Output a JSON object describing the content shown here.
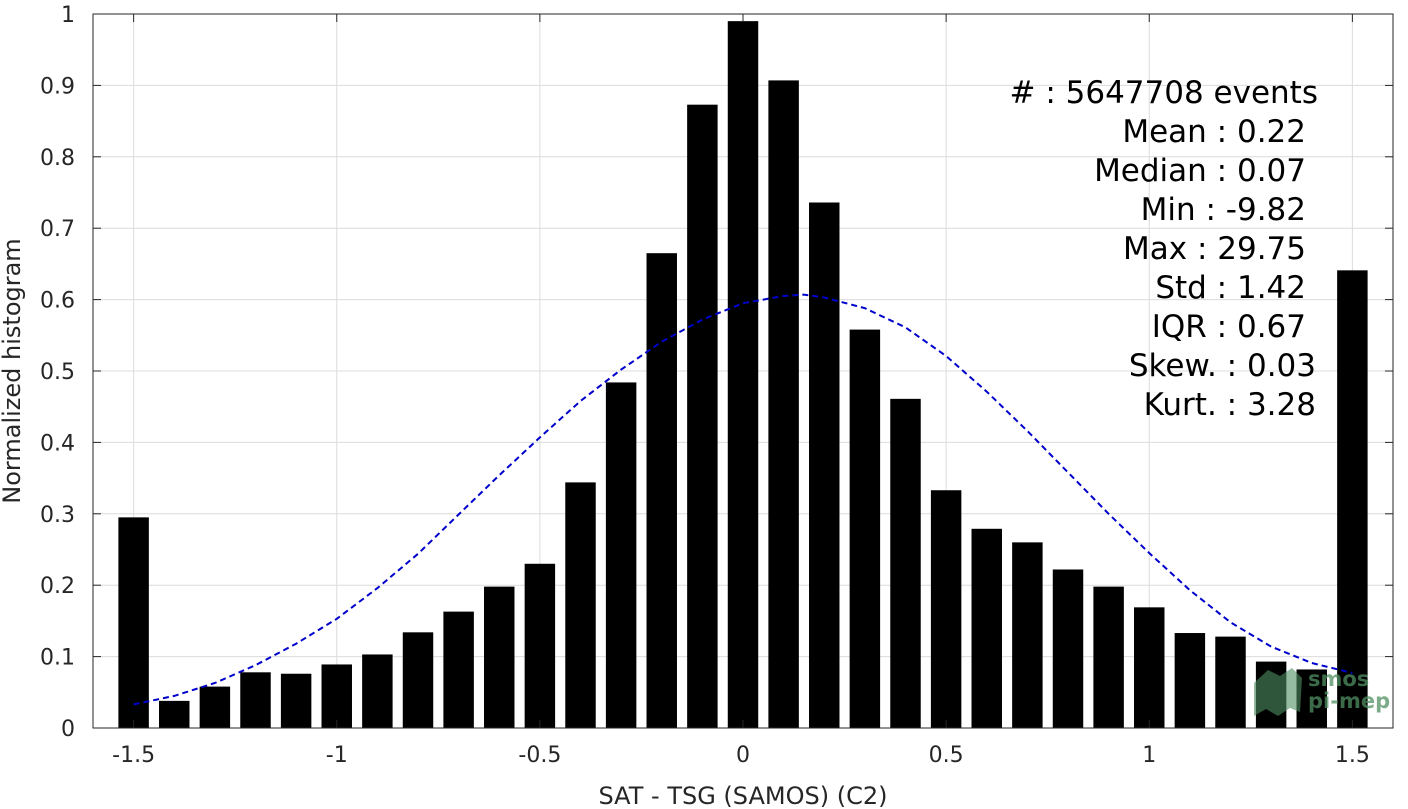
{
  "chart_data": {
    "type": "bar",
    "xlabel": "SAT - TSG (SAMOS) (C2)",
    "ylabel": "Normalized histogram",
    "xlim": [
      -1.6,
      1.6
    ],
    "ylim": [
      0,
      1
    ],
    "grid": true,
    "xticks": [
      -1.5,
      -1,
      -0.5,
      0,
      0.5,
      1,
      1.5
    ],
    "xtick_labels": [
      "-1.5",
      "-1",
      "-0.5",
      "0",
      "0.5",
      "1",
      "1.5"
    ],
    "yticks": [
      0,
      0.1,
      0.2,
      0.3,
      0.4,
      0.5,
      0.6,
      0.7,
      0.8,
      0.9,
      1
    ],
    "ytick_labels": [
      "0",
      "0.1",
      "0.2",
      "0.3",
      "0.4",
      "0.5",
      "0.6",
      "0.7",
      "0.8",
      "0.9",
      "1"
    ],
    "bar_color": "#000000",
    "bin_width": 0.1,
    "bars": [
      {
        "x": -1.5,
        "y": 0.295
      },
      {
        "x": -1.4,
        "y": 0.038
      },
      {
        "x": -1.3,
        "y": 0.058
      },
      {
        "x": -1.2,
        "y": 0.078
      },
      {
        "x": -1.1,
        "y": 0.076
      },
      {
        "x": -1.0,
        "y": 0.089
      },
      {
        "x": -0.9,
        "y": 0.103
      },
      {
        "x": -0.8,
        "y": 0.134
      },
      {
        "x": -0.7,
        "y": 0.163
      },
      {
        "x": -0.6,
        "y": 0.198
      },
      {
        "x": -0.5,
        "y": 0.23
      },
      {
        "x": -0.4,
        "y": 0.344
      },
      {
        "x": -0.3,
        "y": 0.484
      },
      {
        "x": -0.2,
        "y": 0.665
      },
      {
        "x": -0.1,
        "y": 0.873
      },
      {
        "x": 0.0,
        "y": 0.99
      },
      {
        "x": 0.1,
        "y": 0.907
      },
      {
        "x": 0.2,
        "y": 0.736
      },
      {
        "x": 0.3,
        "y": 0.558
      },
      {
        "x": 0.4,
        "y": 0.461
      },
      {
        "x": 0.5,
        "y": 0.333
      },
      {
        "x": 0.6,
        "y": 0.279
      },
      {
        "x": 0.7,
        "y": 0.26
      },
      {
        "x": 0.8,
        "y": 0.222
      },
      {
        "x": 0.9,
        "y": 0.198
      },
      {
        "x": 1.0,
        "y": 0.169
      },
      {
        "x": 1.1,
        "y": 0.133
      },
      {
        "x": 1.2,
        "y": 0.128
      },
      {
        "x": 1.3,
        "y": 0.093
      },
      {
        "x": 1.4,
        "y": 0.082
      },
      {
        "x": 1.5,
        "y": 0.641
      }
    ],
    "fit_curve": {
      "style": "dashed",
      "color": "#0000cc",
      "points": [
        {
          "x": -1.5,
          "y": 0.033
        },
        {
          "x": -1.4,
          "y": 0.045
        },
        {
          "x": -1.3,
          "y": 0.063
        },
        {
          "x": -1.2,
          "y": 0.088
        },
        {
          "x": -1.1,
          "y": 0.118
        },
        {
          "x": -1.0,
          "y": 0.153
        },
        {
          "x": -0.9,
          "y": 0.196
        },
        {
          "x": -0.8,
          "y": 0.244
        },
        {
          "x": -0.7,
          "y": 0.299
        },
        {
          "x": -0.6,
          "y": 0.354
        },
        {
          "x": -0.5,
          "y": 0.407
        },
        {
          "x": -0.4,
          "y": 0.458
        },
        {
          "x": -0.3,
          "y": 0.502
        },
        {
          "x": -0.2,
          "y": 0.541
        },
        {
          "x": -0.1,
          "y": 0.572
        },
        {
          "x": 0.0,
          "y": 0.595
        },
        {
          "x": 0.1,
          "y": 0.605
        },
        {
          "x": 0.15,
          "y": 0.607
        },
        {
          "x": 0.2,
          "y": 0.603
        },
        {
          "x": 0.3,
          "y": 0.588
        },
        {
          "x": 0.4,
          "y": 0.561
        },
        {
          "x": 0.5,
          "y": 0.521
        },
        {
          "x": 0.6,
          "y": 0.471
        },
        {
          "x": 0.7,
          "y": 0.416
        },
        {
          "x": 0.8,
          "y": 0.358
        },
        {
          "x": 0.9,
          "y": 0.3
        },
        {
          "x": 1.0,
          "y": 0.245
        },
        {
          "x": 1.1,
          "y": 0.193
        },
        {
          "x": 1.2,
          "y": 0.148
        },
        {
          "x": 1.3,
          "y": 0.114
        },
        {
          "x": 1.4,
          "y": 0.091
        },
        {
          "x": 1.5,
          "y": 0.077
        }
      ]
    }
  },
  "stats": {
    "events": "#  : 5647708 events",
    "mean": "Mean : 0.22",
    "median": "Median : 0.07",
    "min": "Min : -9.82",
    "max": "Max : 29.75",
    "std": "Std : 1.42",
    "iqr": "IQR : 0.67",
    "skew": "Skew. : 0.03",
    "kurt": "Kurt. : 3.28"
  },
  "watermark": {
    "line1": "smos",
    "line2": "pi-mep",
    "color": "#4f8f62"
  }
}
